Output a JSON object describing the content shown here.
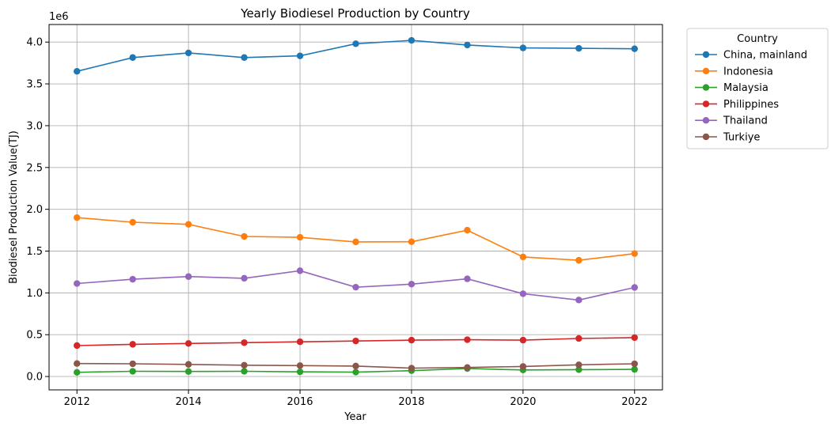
{
  "chart_data": {
    "type": "line",
    "title": "Yearly Biodiesel Production by Country",
    "xlabel": "Year",
    "ylabel": "Biodiesel Production Value(TJ)",
    "offset_label": "1e6",
    "x": [
      2012,
      2013,
      2014,
      2015,
      2016,
      2017,
      2018,
      2019,
      2020,
      2021,
      2022
    ],
    "xlim": [
      2011.5,
      2022.5
    ],
    "ylim": [
      -160000,
      4210000
    ],
    "xticks": [
      2012,
      2014,
      2016,
      2018,
      2020,
      2022
    ],
    "yticks": [
      0,
      500000,
      1000000,
      1500000,
      2000000,
      2500000,
      3000000,
      3500000,
      4000000
    ],
    "ytick_labels": [
      "0.0",
      "0.5",
      "1.0",
      "1.5",
      "2.0",
      "2.5",
      "3.0",
      "3.5",
      "4.0"
    ],
    "grid": true,
    "legend": {
      "title": "Country",
      "placement": "outside-top-right"
    },
    "series": [
      {
        "name": "China, mainland",
        "color": "#1f77b4",
        "values": [
          3650000,
          3815000,
          3870000,
          3815000,
          3835000,
          3980000,
          4020000,
          3965000,
          3930000,
          3925000,
          3920000
        ]
      },
      {
        "name": "Indonesia",
        "color": "#ff7f0e",
        "values": [
          1900000,
          1845000,
          1820000,
          1675000,
          1665000,
          1610000,
          1612000,
          1750000,
          1430000,
          1390000,
          1470000
        ]
      },
      {
        "name": "Malaysia",
        "color": "#2ca02c",
        "values": [
          50000,
          62000,
          60000,
          62000,
          56000,
          52000,
          70000,
          95000,
          78000,
          82000,
          85000
        ]
      },
      {
        "name": "Philippines",
        "color": "#d62728",
        "values": [
          370000,
          385000,
          395000,
          405000,
          415000,
          425000,
          435000,
          440000,
          435000,
          455000,
          465000
        ]
      },
      {
        "name": "Thailand",
        "color": "#9467bd",
        "values": [
          1112000,
          1163000,
          1195000,
          1175000,
          1265000,
          1068000,
          1105000,
          1168000,
          990000,
          915000,
          1065000
        ]
      },
      {
        "name": "Turkiye",
        "color": "#8c564b",
        "values": [
          155000,
          152000,
          145000,
          135000,
          130000,
          125000,
          100000,
          108000,
          120000,
          140000,
          152000
        ]
      }
    ]
  }
}
